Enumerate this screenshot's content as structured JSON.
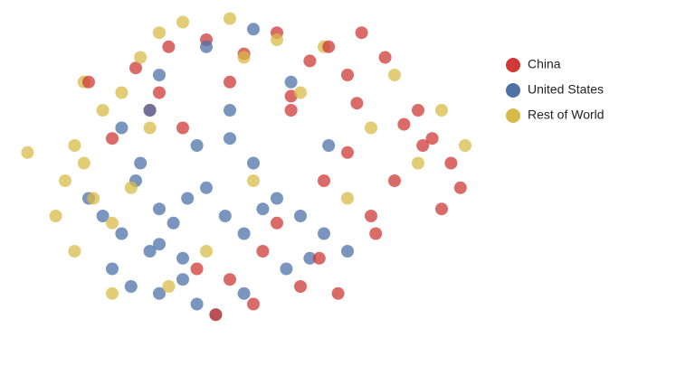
{
  "chart_data": {
    "type": "scatter",
    "xlim": [
      0,
      100
    ],
    "ylim": [
      0,
      100
    ],
    "legend": "right",
    "series": [
      {
        "name": "China",
        "color": "#cf3a36",
        "x": [
          25,
          32,
          40,
          48,
          55,
          62,
          70,
          78,
          30,
          45,
          58,
          72,
          85,
          88,
          92,
          94,
          90,
          86,
          82,
          70,
          65,
          75,
          55,
          60,
          68,
          50,
          45,
          42,
          38,
          52,
          64,
          76,
          35,
          28,
          20,
          15,
          80,
          73,
          66,
          58
        ],
        "values": [
          82,
          88,
          90,
          86,
          92,
          84,
          80,
          85,
          75,
          78,
          74,
          72,
          70,
          62,
          55,
          48,
          42,
          60,
          66,
          58,
          50,
          40,
          38,
          20,
          18,
          15,
          22,
          12,
          25,
          30,
          28,
          35,
          65,
          70,
          62,
          78,
          50,
          92,
          88,
          70
        ]
      },
      {
        "name": "United States",
        "color": "#4e71a8",
        "x": [
          15,
          18,
          22,
          25,
          28,
          30,
          33,
          36,
          40,
          44,
          48,
          52,
          20,
          24,
          30,
          35,
          26,
          38,
          45,
          50,
          55,
          60,
          65,
          38,
          42,
          48,
          35,
          30,
          57,
          62,
          70,
          45,
          30,
          40,
          50,
          58,
          66,
          22,
          28
        ],
        "values": [
          45,
          40,
          35,
          50,
          30,
          42,
          38,
          45,
          48,
          40,
          35,
          42,
          25,
          20,
          18,
          22,
          55,
          60,
          62,
          55,
          45,
          40,
          35,
          15,
          12,
          18,
          28,
          32,
          25,
          28,
          30,
          70,
          80,
          88,
          93,
          78,
          60,
          65,
          70
        ]
      },
      {
        "name": "Rest of World",
        "color": "#d8bb47",
        "x": [
          10,
          14,
          16,
          20,
          24,
          12,
          18,
          22,
          26,
          14,
          30,
          35,
          8,
          12,
          45,
          55,
          65,
          80,
          90,
          85,
          75,
          60,
          50,
          40,
          32,
          95,
          2,
          20,
          28,
          70,
          48
        ],
        "values": [
          50,
          55,
          45,
          38,
          48,
          60,
          70,
          75,
          85,
          78,
          92,
          95,
          40,
          30,
          96,
          90,
          88,
          80,
          70,
          55,
          65,
          75,
          50,
          30,
          20,
          60,
          58,
          18,
          65,
          45,
          85
        ]
      }
    ]
  }
}
